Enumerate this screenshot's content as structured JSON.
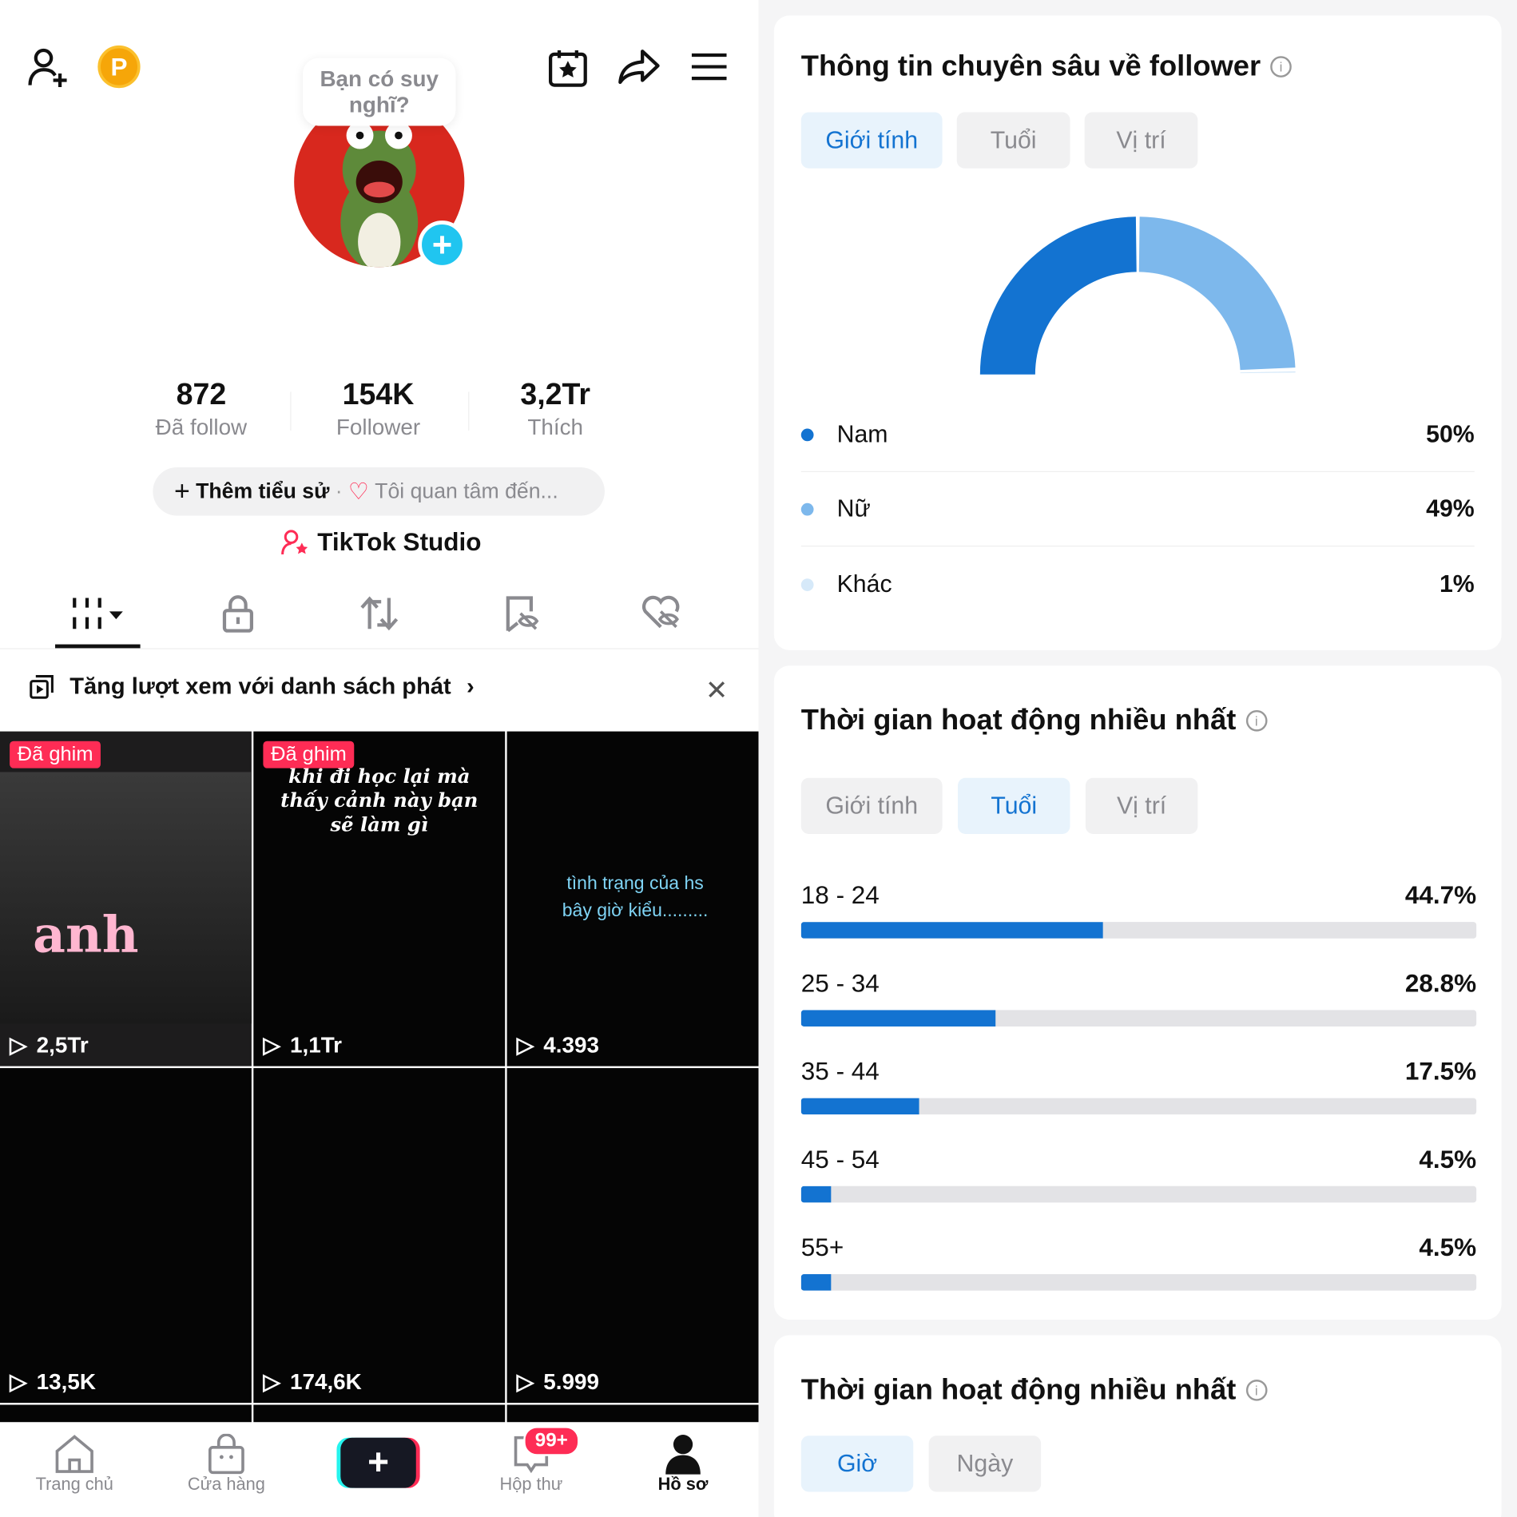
{
  "profile": {
    "bubble": "Bạn có suy nghĩ?",
    "coin_badge": "P",
    "stats": [
      {
        "value": "872",
        "label": "Đã follow"
      },
      {
        "value": "154K",
        "label": "Follower"
      },
      {
        "value": "3,2Tr",
        "label": "Thích"
      }
    ],
    "add_bio": "Thêm tiểu sử",
    "interest": "Tôi quan tâm đến...",
    "studio": "TikTok Studio",
    "playlist_banner": "Tăng lượt xem với danh sách phát"
  },
  "videos": [
    {
      "pinned": "Đã ghim",
      "caption": "anh",
      "views": "2,5Tr"
    },
    {
      "pinned": "Đã ghim",
      "caption": "khi đi học lại mà thấy cảnh này bạn sẽ làm gì",
      "views": "1,1Tr"
    },
    {
      "caption": "tình trạng của hs bây giờ kiểu.........",
      "views": "4.393"
    },
    {
      "views": "13,5K"
    },
    {
      "views": "174,6K"
    },
    {
      "views": "5.999"
    }
  ],
  "nav": {
    "home": "Trang chủ",
    "shop": "Cửa hàng",
    "inbox": "Hộp thư",
    "inbox_badge": "99+",
    "profile": "Hồ sơ"
  },
  "insights": {
    "title": "Thông tin chuyên sâu về follower",
    "tabs": [
      "Giới tính",
      "Tuổi",
      "Vị trí"
    ],
    "active_tab": "Giới tính"
  },
  "active_time": {
    "title": "Thời gian hoạt động nhiều nhất",
    "tabs": [
      "Giới tính",
      "Tuổi",
      "Vị trí"
    ],
    "active_tab": "Tuổi"
  },
  "active_time2": {
    "title": "Thời gian hoạt động nhiều nhất",
    "tabs": [
      "Giờ",
      "Ngày"
    ],
    "active_tab": "Giờ"
  },
  "chart_data": [
    {
      "type": "pie",
      "title": "Giới tính",
      "categories": [
        "Nam",
        "Nữ",
        "Khác"
      ],
      "values": [
        50,
        49,
        1
      ],
      "labels": [
        "50%",
        "49%",
        "1%"
      ],
      "colors": [
        "#1373d1",
        "#7db8ec",
        "#d6e9f9"
      ]
    },
    {
      "type": "bar",
      "title": "Tuổi",
      "categories": [
        "18 - 24",
        "25 - 34",
        "35 - 44",
        "45 - 54",
        "55+"
      ],
      "values": [
        44.7,
        28.8,
        17.5,
        4.5,
        4.5
      ],
      "labels": [
        "44.7%",
        "28.8%",
        "17.5%",
        "4.5%",
        "4.5%"
      ],
      "ylim": [
        0,
        100
      ]
    }
  ]
}
